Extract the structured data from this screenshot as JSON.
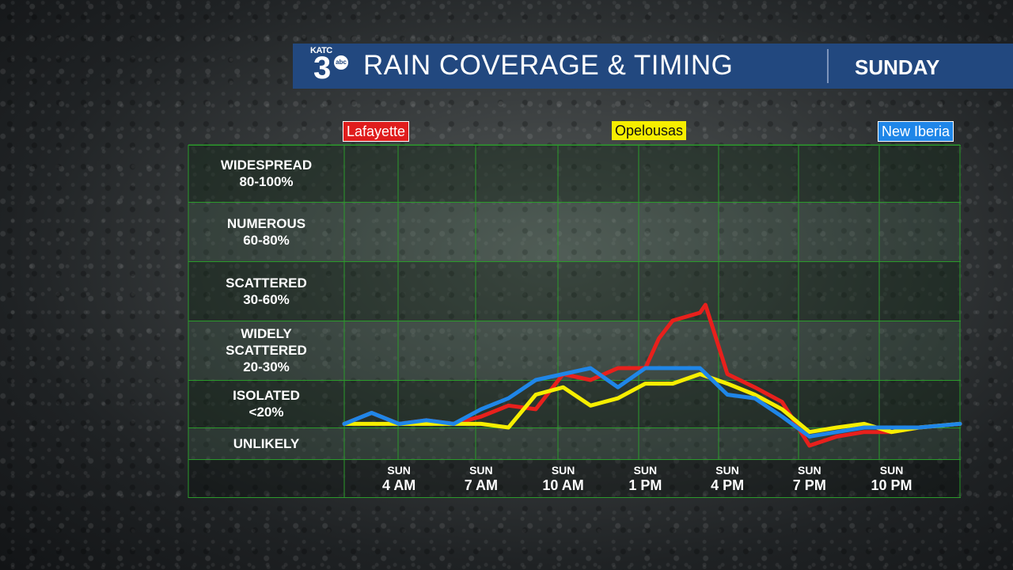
{
  "header": {
    "logo": {
      "katc": "KATC",
      "number": "3",
      "network": "abc"
    },
    "title": "RAIN COVERAGE & TIMING",
    "day": "SUNDAY"
  },
  "colors": {
    "header_bg": "#22487f",
    "grid": "#2b9a2b",
    "lafayette": "#e8201c",
    "opelousas": "#f6ee00",
    "new_iberia": "#1f86e8"
  },
  "chart_data": {
    "type": "line",
    "title": "RAIN COVERAGE & TIMING",
    "subtitle": "SUNDAY",
    "y_categories": [
      {
        "name": "WIDESPREAD",
        "range": "80-100%"
      },
      {
        "name": "NUMEROUS",
        "range": "60-80%"
      },
      {
        "name": "SCATTERED",
        "range": "30-60%"
      },
      {
        "name": "WIDELY SCATTERED",
        "range": "20-30%"
      },
      {
        "name": "ISOLATED",
        "range": "<20%"
      },
      {
        "name": "UNLIKELY",
        "range": ""
      }
    ],
    "x_ticks": [
      {
        "day": "SUN",
        "time": "4 AM",
        "hour": 4
      },
      {
        "day": "SUN",
        "time": "7 AM",
        "hour": 7
      },
      {
        "day": "SUN",
        "time": "10 AM",
        "hour": 10
      },
      {
        "day": "SUN",
        "time": "1 PM",
        "hour": 13
      },
      {
        "day": "SUN",
        "time": "4 PM",
        "hour": 16
      },
      {
        "day": "SUN",
        "time": "7 PM",
        "hour": 19
      },
      {
        "day": "SUN",
        "time": "10 PM",
        "hour": 22
      }
    ],
    "xlim": [
      2,
      24.5
    ],
    "band_edges": [
      0,
      7,
      20,
      30,
      60,
      80,
      100
    ],
    "ylim": [
      0,
      100
    ],
    "grid": true,
    "legend_position": "top",
    "series": [
      {
        "name": "Lafayette",
        "color": "#e8201c",
        "x": [
          2,
          3,
          4,
          5,
          6,
          7,
          8,
          9,
          10,
          11,
          12,
          13,
          13.5,
          14,
          15,
          15.2,
          16,
          17,
          18,
          19,
          20,
          21,
          22,
          23,
          24.5
        ],
        "values": [
          8,
          11,
          8,
          9,
          8,
          10,
          13,
          12,
          21,
          20,
          22,
          22,
          27,
          30,
          34,
          38,
          21,
          18,
          14,
          3,
          5,
          6,
          6,
          7,
          8
        ]
      },
      {
        "name": "Opelousas",
        "color": "#f6ee00",
        "x": [
          2,
          3,
          4,
          5,
          6,
          7,
          8,
          9,
          10,
          11,
          12,
          13,
          14,
          15,
          16,
          17,
          18,
          19,
          20,
          21,
          22,
          23,
          24.5
        ],
        "values": [
          8,
          8,
          8,
          8,
          8,
          8,
          7,
          16,
          18,
          13,
          15,
          19,
          19,
          21,
          19,
          16,
          12,
          6,
          7,
          8,
          6,
          7,
          8
        ]
      },
      {
        "name": "New Iberia",
        "color": "#1f86e8",
        "x": [
          2,
          3,
          4,
          5,
          6,
          7,
          8,
          9,
          10,
          11,
          12,
          13,
          14,
          15,
          16,
          17,
          18,
          19,
          20,
          21,
          22,
          23,
          24.5
        ],
        "values": [
          8,
          11,
          8,
          9,
          8,
          12,
          15,
          20,
          21,
          22,
          18,
          22,
          22,
          22,
          16,
          15,
          10,
          5,
          6,
          7,
          7,
          7,
          8
        ]
      }
    ]
  }
}
